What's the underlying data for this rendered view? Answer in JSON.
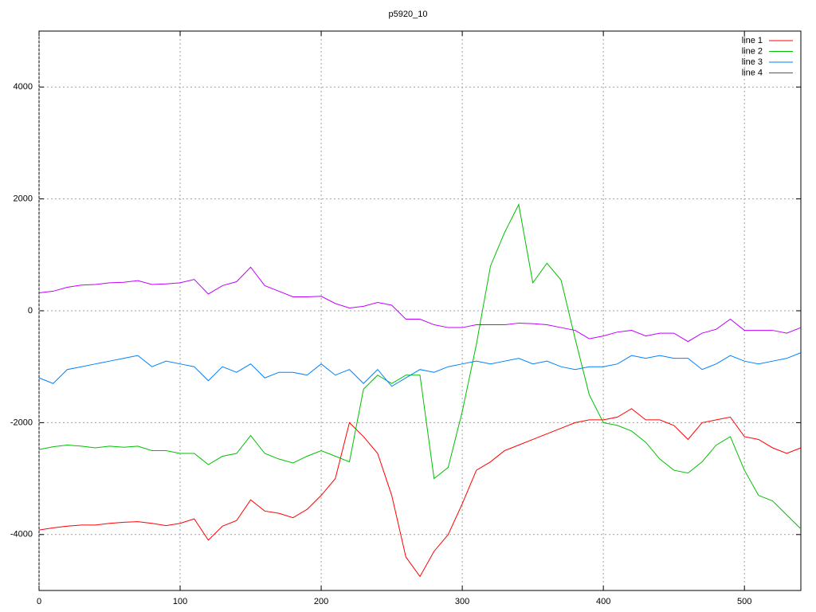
{
  "chart_data": {
    "type": "line",
    "title": "p5920_10",
    "x": [
      0,
      10,
      20,
      30,
      40,
      50,
      60,
      70,
      80,
      90,
      100,
      110,
      120,
      130,
      140,
      150,
      160,
      170,
      180,
      190,
      200,
      210,
      220,
      230,
      240,
      250,
      260,
      270,
      280,
      290,
      300,
      310,
      320,
      330,
      340,
      350,
      360,
      370,
      380,
      390,
      400,
      410,
      420,
      430,
      440,
      450,
      460,
      470,
      480,
      490,
      500,
      510,
      520,
      530,
      540
    ],
    "series": [
      {
        "name": "line 1",
        "color": "#ff0000",
        "values": [
          -3920,
          -3880,
          -3850,
          -3830,
          -3830,
          -3800,
          -3780,
          -3770,
          -3800,
          -3840,
          -3800,
          -3720,
          -4100,
          -3850,
          -3750,
          -3380,
          -3580,
          -3620,
          -3700,
          -3550,
          -3300,
          -3000,
          -2000,
          -2250,
          -2550,
          -3300,
          -4400,
          -4750,
          -4300,
          -4000,
          -3450,
          -2850,
          -2700,
          -2500,
          -2400,
          -2300,
          -2200,
          -2100,
          -2000,
          -1950,
          -1950,
          -1900,
          -1750,
          -1950,
          -1950,
          -2050,
          -2300,
          -2000,
          -1950,
          -1900,
          -2250,
          -2300,
          -2450,
          -2550,
          -2450
        ]
      },
      {
        "name": "line 2",
        "color": "#00c000",
        "values": [
          -2480,
          -2430,
          -2400,
          -2420,
          -2450,
          -2420,
          -2440,
          -2420,
          -2500,
          -2500,
          -2550,
          -2550,
          -2750,
          -2600,
          -2550,
          -2230,
          -2550,
          -2650,
          -2720,
          -2600,
          -2500,
          -2600,
          -2700,
          -1400,
          -1150,
          -1300,
          -1150,
          -1150,
          -3000,
          -2800,
          -1800,
          -600,
          800,
          1400,
          1900,
          500,
          850,
          550,
          -500,
          -1500,
          -2000,
          -2050,
          -2150,
          -2350,
          -2650,
          -2850,
          -2900,
          -2700,
          -2400,
          -2250,
          -2850,
          -3300,
          -3400,
          -3650,
          -3900
        ]
      },
      {
        "name": "line 3",
        "color": "#0080ff",
        "values": [
          -1200,
          -1300,
          -1050,
          -1000,
          -950,
          -900,
          -850,
          -800,
          -1000,
          -900,
          -950,
          -1000,
          -1250,
          -1000,
          -1100,
          -950,
          -1200,
          -1100,
          -1100,
          -1150,
          -950,
          -1150,
          -1050,
          -1300,
          -1050,
          -1350,
          -1200,
          -1050,
          -1100,
          -1000,
          -950,
          -900,
          -950,
          -900,
          -850,
          -950,
          -900,
          -1000,
          -1050,
          -1000,
          -1000,
          -950,
          -800,
          -850,
          -800,
          -850,
          -850,
          -1050,
          -950,
          -800,
          -900,
          -950,
          -900,
          -850,
          -750
        ]
      },
      {
        "name": "line 4",
        "color": "#c000ff",
        "values": [
          320,
          350,
          420,
          460,
          470,
          500,
          510,
          540,
          470,
          480,
          500,
          560,
          300,
          450,
          520,
          780,
          450,
          350,
          250,
          250,
          260,
          130,
          50,
          80,
          150,
          100,
          -150,
          -150,
          -250,
          -300,
          -300,
          -250,
          -250,
          -250,
          -220,
          -230,
          -250,
          -300,
          -350,
          -500,
          -450,
          -380,
          -350,
          -450,
          -400,
          -400,
          -550,
          -400,
          -330,
          -150,
          -350,
          -350,
          -350,
          -400,
          -300
        ]
      }
    ],
    "xlim": [
      0,
      540
    ],
    "ylim": [
      -5000,
      5000
    ],
    "xticks": [
      0,
      100,
      200,
      300,
      400,
      500
    ],
    "yticks": [
      -4000,
      -2000,
      0,
      2000,
      4000
    ],
    "grid": true,
    "legend": "top-right"
  }
}
